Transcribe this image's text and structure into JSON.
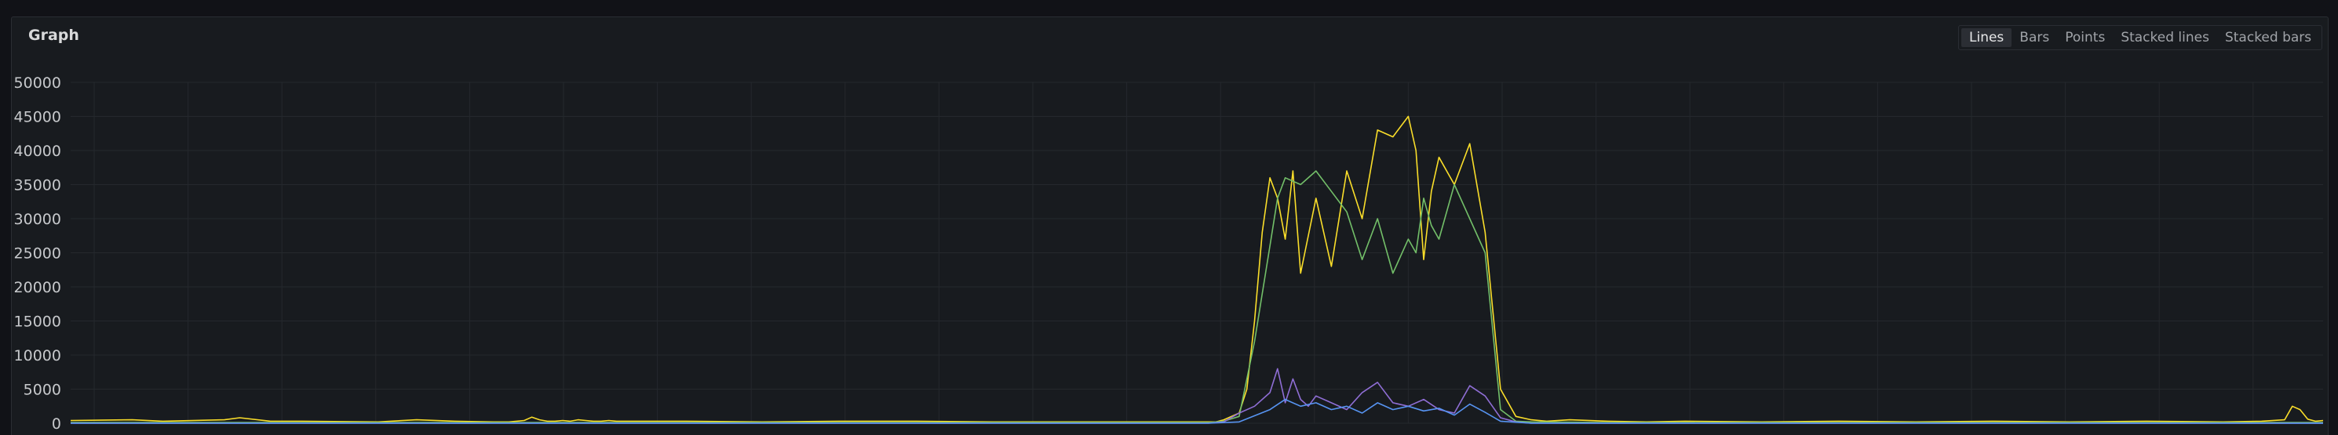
{
  "panel": {
    "title": "Graph",
    "modes": [
      {
        "label": "Lines",
        "active": true
      },
      {
        "label": "Bars",
        "active": false
      },
      {
        "label": "Points",
        "active": false
      },
      {
        "label": "Stacked lines",
        "active": false
      },
      {
        "label": "Stacked bars",
        "active": false
      }
    ]
  },
  "colors": {
    "background": "#111217",
    "panel": "#181b1f",
    "grid": "#25282d"
  },
  "chart_data": {
    "type": "line",
    "ylim": [
      0,
      50000
    ],
    "y_ticks": [
      0,
      5000,
      10000,
      15000,
      20000,
      25000,
      30000,
      35000,
      40000,
      45000,
      50000
    ],
    "x_ticks_visible": 24,
    "x_tick_labels": [],
    "grid": true,
    "legend": "none",
    "series": [
      {
        "color": "#fade2a",
        "x": [
          0,
          8,
          12,
          20,
          22,
          26,
          30,
          40,
          45,
          50,
          55,
          57,
          58,
          59,
          60,
          61,
          62,
          63,
          64,
          65,
          66,
          67,
          68,
          69,
          70,
          71,
          72,
          73,
          74,
          75,
          76,
          80,
          90,
          100,
          110,
          120,
          125,
          130,
          140,
          148,
          149,
          150,
          152,
          153,
          154,
          155,
          156,
          157,
          158,
          159,
          160,
          162,
          164,
          166,
          168,
          170,
          172,
          174,
          175,
          176,
          177,
          178,
          180,
          182,
          184,
          186,
          188,
          190,
          192,
          195,
          200,
          205,
          210,
          220,
          230,
          240,
          250,
          260,
          270,
          280,
          285,
          288,
          289,
          290,
          291,
          292,
          293
        ],
        "y": [
          400,
          500,
          300,
          500,
          800,
          300,
          300,
          200,
          500,
          300,
          200,
          200,
          300,
          400,
          900,
          500,
          300,
          300,
          400,
          300,
          500,
          400,
          300,
          300,
          400,
          300,
          300,
          300,
          300,
          300,
          300,
          300,
          200,
          300,
          300,
          200,
          200,
          200,
          200,
          200,
          200,
          500,
          1500,
          5000,
          15000,
          28000,
          36000,
          33000,
          27000,
          37000,
          22000,
          33000,
          23000,
          37000,
          30000,
          43000,
          42000,
          45000,
          40000,
          24000,
          34000,
          39000,
          35000,
          41000,
          28000,
          5000,
          1000,
          500,
          300,
          500,
          300,
          200,
          300,
          200,
          300,
          200,
          300,
          200,
          300,
          200,
          300,
          500,
          2500,
          2000,
          600,
          300,
          400
        ]
      },
      {
        "color": "#73bf69",
        "x": [
          0,
          40,
          100,
          148,
          150,
          152,
          154,
          156,
          157,
          158,
          160,
          162,
          164,
          166,
          168,
          170,
          172,
          174,
          175,
          176,
          177,
          178,
          180,
          182,
          184,
          186,
          188,
          190,
          200,
          240,
          293
        ],
        "y": [
          100,
          100,
          100,
          100,
          300,
          1000,
          12000,
          26000,
          33000,
          36000,
          35000,
          37000,
          34000,
          31000,
          24000,
          30000,
          22000,
          27000,
          25000,
          33000,
          29000,
          27000,
          35000,
          30000,
          25000,
          2000,
          300,
          200,
          100,
          100,
          100
        ]
      },
      {
        "color": "#8f6ed5",
        "x": [
          0,
          100,
          148,
          150,
          152,
          154,
          156,
          157,
          158,
          159,
          160,
          161,
          162,
          164,
          166,
          168,
          170,
          172,
          174,
          176,
          178,
          180,
          182,
          184,
          186,
          188,
          190,
          200,
          293
        ],
        "y": [
          0,
          0,
          0,
          200,
          1500,
          2500,
          4500,
          8000,
          3000,
          6500,
          3500,
          2500,
          4000,
          3000,
          2000,
          4500,
          6000,
          3000,
          2500,
          3500,
          2000,
          1500,
          5500,
          4000,
          800,
          200,
          0,
          0,
          0
        ]
      },
      {
        "color": "#5794f2",
        "x": [
          0,
          100,
          148,
          152,
          156,
          158,
          160,
          162,
          164,
          166,
          168,
          170,
          172,
          174,
          176,
          178,
          180,
          182,
          184,
          186,
          190,
          293
        ],
        "y": [
          0,
          0,
          0,
          200,
          2000,
          3500,
          2500,
          3000,
          2000,
          2500,
          1500,
          3000,
          2000,
          2500,
          1800,
          2200,
          1200,
          2800,
          1600,
          300,
          0,
          0
        ]
      }
    ]
  }
}
